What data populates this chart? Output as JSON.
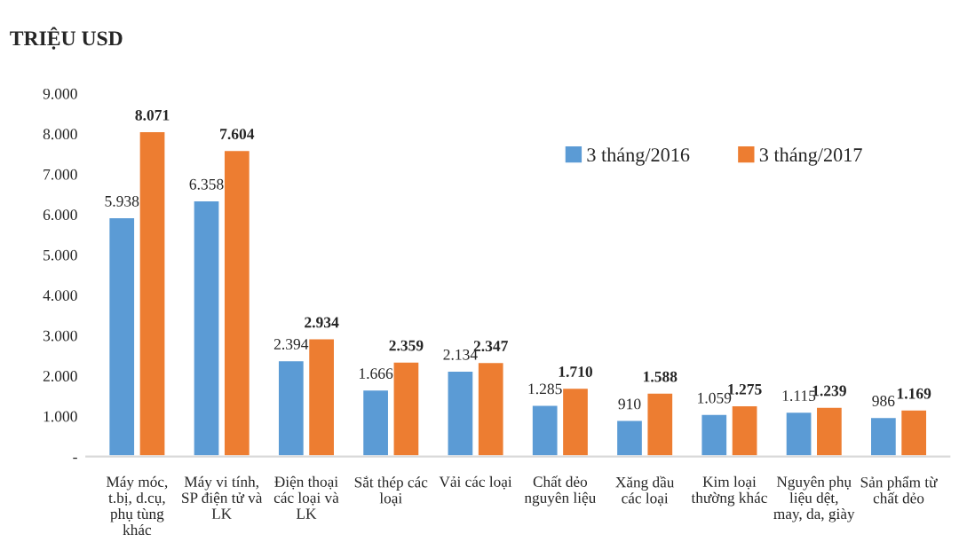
{
  "chart_data": {
    "type": "bar",
    "ylabel": "TRIỆU USD",
    "categories": [
      "Máy móc,\nt.bị, d.cụ,\nphụ tùng\nkhác",
      "Máy vi tính,\nSP điện tử và\nLK",
      "Điện thoại\ncác loại và\nLK",
      "Sắt thép các\nloại",
      "Vải các loại",
      "Chất dẻo\nnguyên liệu",
      "Xăng dầu\ncác loại",
      "Kim loại\nthường khác",
      "Nguyên phụ\nliệu dệt,\nmay, da, giày",
      "Sản phẩm từ\nchất dẻo"
    ],
    "series": [
      {
        "name": "3 tháng/2016",
        "color": "#5b9bd5",
        "values": [
          5938,
          6358,
          2394,
          1666,
          2134,
          1285,
          910,
          1059,
          1115,
          986
        ],
        "value_labels": [
          "5.938",
          "6.358",
          "2.394",
          "1.666",
          "2.134",
          "1.285",
          "910",
          "1.059",
          "1.115",
          "986"
        ]
      },
      {
        "name": "3 tháng/2017",
        "color": "#ed7d31",
        "values": [
          8071,
          7604,
          2934,
          2359,
          2347,
          1710,
          1588,
          1275,
          1239,
          1169
        ],
        "value_labels": [
          "8.071",
          "7.604",
          "2.934",
          "2.359",
          "2.347",
          "1.710",
          "1.588",
          "1.275",
          "1.239",
          "1.169"
        ]
      }
    ],
    "ylim": [
      0,
      9000
    ],
    "yticks": [
      {
        "value": 0,
        "label": "-"
      },
      {
        "value": 1000,
        "label": "1.000"
      },
      {
        "value": 2000,
        "label": "2.000"
      },
      {
        "value": 3000,
        "label": "3.000"
      },
      {
        "value": 4000,
        "label": "4.000"
      },
      {
        "value": 5000,
        "label": "5.000"
      },
      {
        "value": 6000,
        "label": "6.000"
      },
      {
        "value": 7000,
        "label": "7.000"
      },
      {
        "value": 8000,
        "label": "8.000"
      },
      {
        "value": 9000,
        "label": "9.000"
      }
    ],
    "grid": false,
    "legend": "top right"
  }
}
